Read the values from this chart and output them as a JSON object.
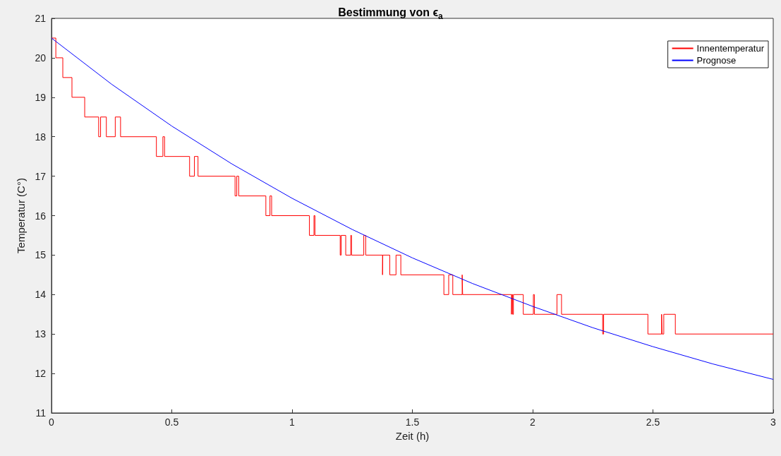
{
  "chart_data": {
    "type": "line",
    "title": "Bestimmung von ϵ$_{a}$",
    "xlabel": "Zeit (h)",
    "ylabel": "Temperatur (C°)",
    "xlim": [
      0,
      3
    ],
    "xticks": [
      0,
      0.5,
      1,
      1.5,
      2,
      2.5,
      3
    ],
    "ylim": [
      11,
      21
    ],
    "yticks": [
      11,
      12,
      13,
      14,
      15,
      16,
      17,
      18,
      19,
      20,
      21
    ],
    "grid": false,
    "legend": "top right",
    "marker": "none",
    "line_style": "solid",
    "series": [
      {
        "name": "Innentemperatur",
        "type": "step",
        "color": "#ff0000",
        "x": [
          0,
          0.018,
          0.047,
          0.085,
          0.138,
          0.196,
          0.204,
          0.228,
          0.265,
          0.287,
          0.436,
          0.463,
          0.47,
          0.574,
          0.594,
          0.609,
          0.763,
          0.77,
          0.778,
          0.891,
          0.908,
          0.915,
          1.072,
          1.091,
          1.095,
          1.2,
          1.204,
          1.223,
          1.244,
          1.247,
          1.298,
          1.306,
          1.376,
          1.377,
          1.406,
          1.432,
          1.452,
          1.631,
          1.651,
          1.668,
          1.707,
          1.709,
          1.912,
          1.914,
          1.917,
          1.92,
          1.961,
          2.003,
          2.007,
          2.101,
          2.12,
          2.291,
          2.295,
          2.479,
          2.536,
          2.538,
          2.545,
          2.593,
          3
        ],
        "values": [
          20.5,
          20,
          19.5,
          19,
          18.5,
          18,
          18.5,
          18,
          18.5,
          18,
          17.5,
          18,
          17.5,
          17,
          17.5,
          17,
          16.5,
          17,
          16.5,
          16,
          16.5,
          16,
          15.5,
          16,
          15.5,
          15,
          15.5,
          15,
          15.5,
          15,
          15.5,
          15,
          14.5,
          15,
          14.5,
          15,
          14.5,
          14,
          14.5,
          14,
          14.5,
          14,
          13.5,
          14,
          13.5,
          14,
          13.5,
          14,
          13.5,
          14,
          13.5,
          13,
          13.5,
          13,
          13.5,
          13,
          13.5,
          13,
          13
        ]
      },
      {
        "name": "Prognose",
        "color": "#0000ff",
        "x": [
          0,
          0.25,
          0.5,
          0.75,
          1,
          1.25,
          1.5,
          1.75,
          2,
          2.25,
          2.5,
          2.75,
          3
        ],
        "values": [
          20.5,
          19.33,
          18.27,
          17.31,
          16.44,
          15.65,
          14.93,
          14.28,
          13.7,
          13.16,
          12.68,
          12.24,
          11.85
        ]
      }
    ]
  }
}
